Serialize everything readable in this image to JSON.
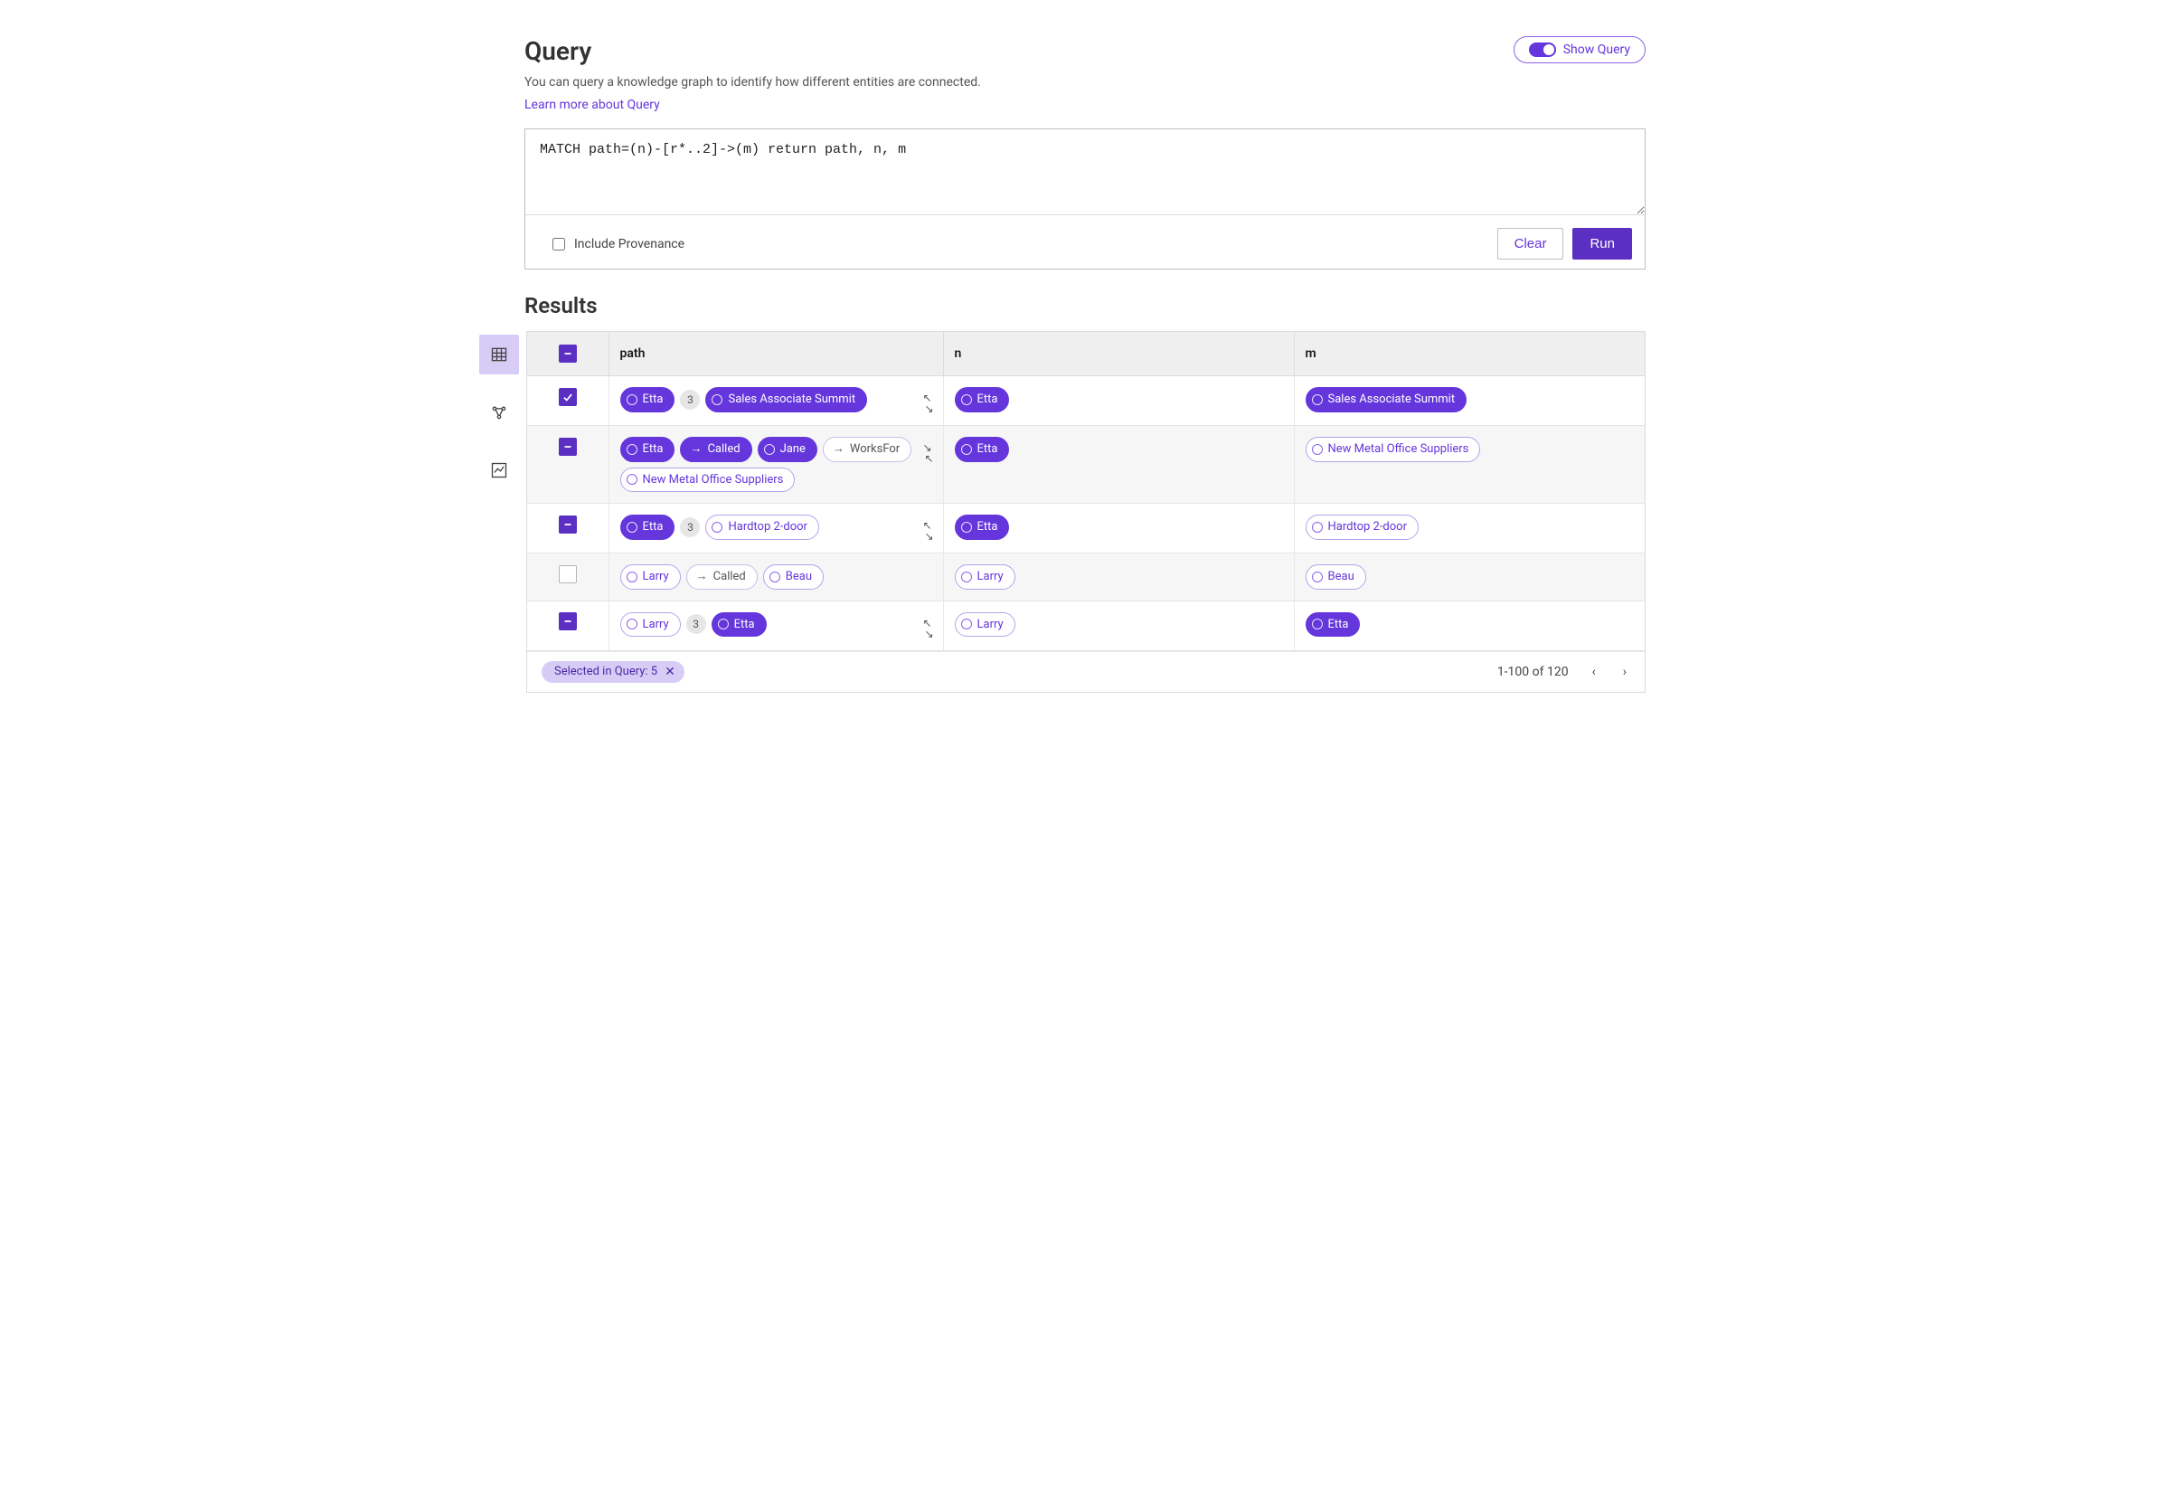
{
  "colors": {
    "primary": "#6436db",
    "primary_dark": "#5a2fc2",
    "pill_outline_border": "#b7a2ee",
    "rail_active_bg": "#d7ccf5",
    "header_bg": "#efefef"
  },
  "header": {
    "title": "Query",
    "description": "You can query a knowledge graph to identify how different entities are connected.",
    "learn_more": "Learn more about Query",
    "show_query_label": "Show Query"
  },
  "query": {
    "text": "MATCH path=(n)-[r*..2]->(m) return path, n, m",
    "include_provenance_label": "Include Provenance",
    "include_provenance_checked": false,
    "clear_label": "Clear",
    "run_label": "Run"
  },
  "results": {
    "title": "Results",
    "columns": {
      "path": "path",
      "n": "n",
      "m": "m"
    },
    "header_checkbox_state": "minus",
    "selected_label": "Selected in Query: 5",
    "pagination": "1-100 of 120",
    "rows": [
      {
        "select_state": "check",
        "expand": "collapse",
        "path": [
          {
            "kind": "node",
            "style": "solid",
            "label": "Etta"
          },
          {
            "kind": "count",
            "value": "3"
          },
          {
            "kind": "node",
            "style": "solid",
            "label": "Sales Associate Summit"
          }
        ],
        "n": {
          "kind": "node",
          "style": "solid",
          "label": "Etta"
        },
        "m": {
          "kind": "node",
          "style": "solid",
          "label": "Sales Associate Summit"
        }
      },
      {
        "select_state": "minus",
        "expand": "expand",
        "path": [
          {
            "kind": "node",
            "style": "solid",
            "label": "Etta"
          },
          {
            "kind": "rel",
            "style": "solid",
            "label": "Called"
          },
          {
            "kind": "node",
            "style": "solid",
            "label": "Jane"
          },
          {
            "kind": "rel",
            "style": "outline",
            "label": "WorksFor"
          },
          {
            "kind": "node",
            "style": "outline",
            "label": "New Metal Office Suppliers"
          }
        ],
        "n": {
          "kind": "node",
          "style": "solid",
          "label": "Etta"
        },
        "m": {
          "kind": "node",
          "style": "outline",
          "label": "New Metal Office Suppliers"
        }
      },
      {
        "select_state": "minus",
        "expand": "collapse",
        "path": [
          {
            "kind": "node",
            "style": "solid",
            "label": "Etta"
          },
          {
            "kind": "count",
            "value": "3"
          },
          {
            "kind": "node",
            "style": "outline",
            "label": "Hardtop 2-door"
          }
        ],
        "n": {
          "kind": "node",
          "style": "solid",
          "label": "Etta"
        },
        "m": {
          "kind": "node",
          "style": "outline",
          "label": "Hardtop 2-door"
        }
      },
      {
        "select_state": "empty",
        "expand": null,
        "path": [
          {
            "kind": "node",
            "style": "outline",
            "label": "Larry"
          },
          {
            "kind": "rel",
            "style": "outline",
            "label": "Called"
          },
          {
            "kind": "node",
            "style": "outline",
            "label": "Beau"
          }
        ],
        "n": {
          "kind": "node",
          "style": "outline",
          "label": "Larry"
        },
        "m": {
          "kind": "node",
          "style": "outline",
          "label": "Beau"
        }
      },
      {
        "select_state": "minus",
        "expand": "collapse",
        "path": [
          {
            "kind": "node",
            "style": "outline",
            "label": "Larry"
          },
          {
            "kind": "count",
            "value": "3"
          },
          {
            "kind": "node",
            "style": "solid",
            "label": "Etta"
          }
        ],
        "n": {
          "kind": "node",
          "style": "outline",
          "label": "Larry"
        },
        "m": {
          "kind": "node",
          "style": "solid",
          "label": "Etta"
        }
      }
    ]
  }
}
